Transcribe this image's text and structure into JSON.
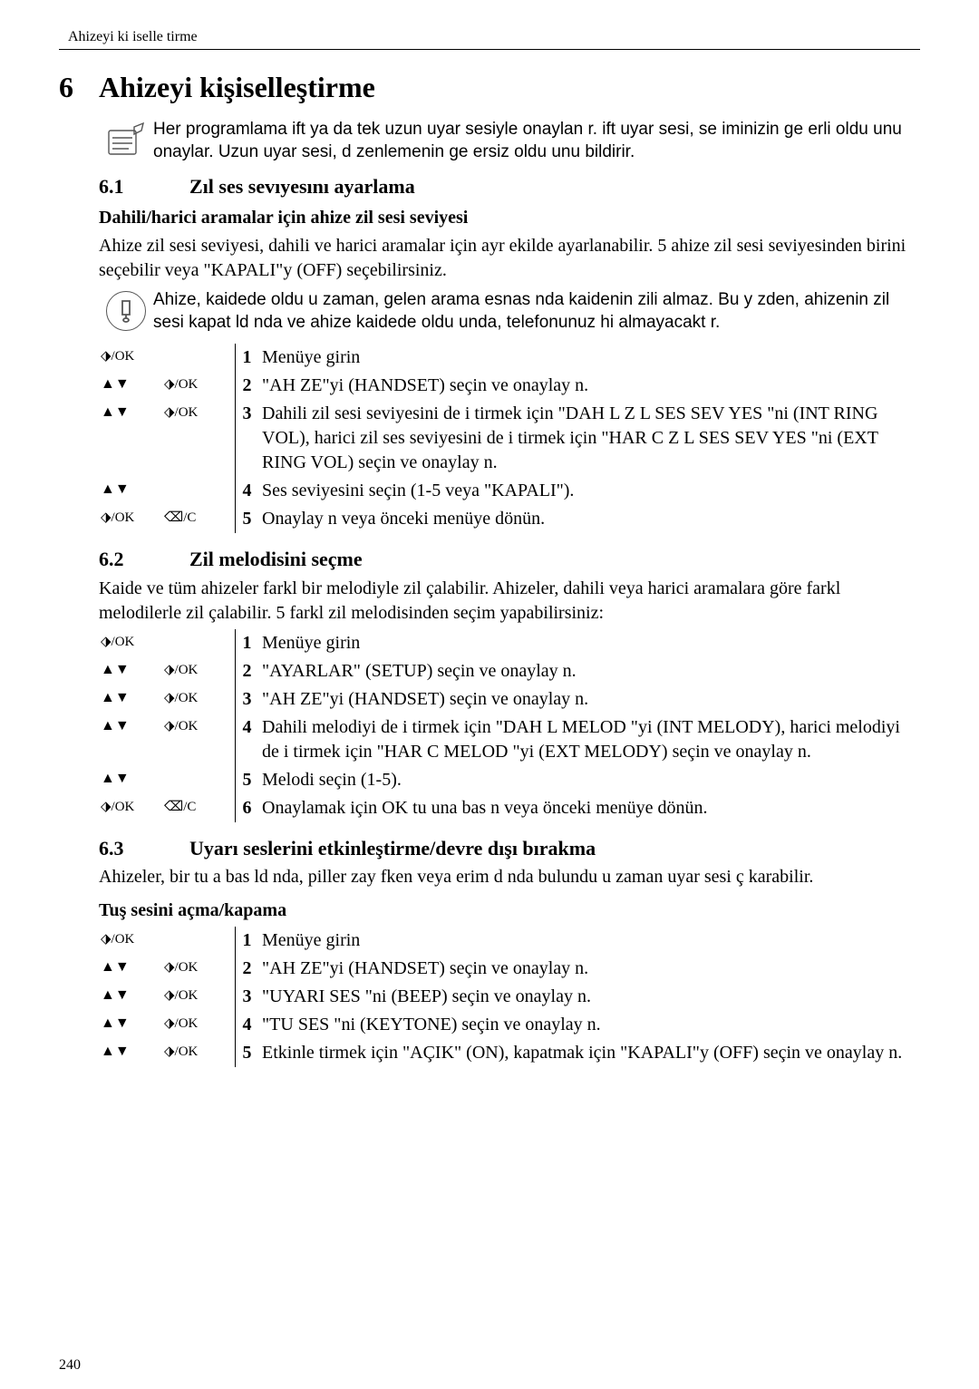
{
  "header": "Ahizeyi ki iselle tirme",
  "page_num": "240",
  "h1_num": "6",
  "h1_title": "Ahizeyi kişiselleştirme",
  "note1": "Her programlama  ift ya da tek uzun uyar  sesiyle onaylan r.  ift uyar  sesi, se iminizin ge erli oldu unu onaylar. Uzun uyar  sesi, d zenlemenin ge ersiz oldu unu bildirir.",
  "s61_num": "6.1",
  "s61_title": "Zıl ses sevıyesını ayarlama",
  "s61_h3": "Dahili/harici aramalar için ahize zil sesi seviyesi",
  "s61_p": "Ahize zil sesi seviyesi, dahili ve harici aramalar için ayr   ekilde ayarlanabilir. 5 ahize zil sesi seviyesinden birini seçebilir veya \"KAPALI\"y  (OFF) seçebilirsiniz.",
  "note2": "Ahize, kaidede oldu u zaman, gelen arama esnas nda kaidenin zili  almaz. Bu y zden, ahizenin zil sesi kapat ld   nda ve ahize kaidede oldu unda, telefonunuz hi   almayacakt r.",
  "s61_steps": [
    {
      "icons1": "ok",
      "icons2": "",
      "n": "1",
      "t": "Menüye girin"
    },
    {
      "icons1": "ud",
      "icons2": "ok",
      "n": "2",
      "t": "\"AH ZE\"yi (HANDSET) seçin ve onaylay n."
    },
    {
      "icons1": "ud",
      "icons2": "ok",
      "n": "3",
      "t": "Dahili zil sesi seviyesini de i tirmek için \"DAH L  Z L SES  SEV YES \"ni (INT RING VOL), harici zil ses seviyesini de i tirmek için \"HAR C  Z L SES  SEV YES \"ni (EXT RING VOL) seçin ve onaylay n."
    },
    {
      "icons1": "ud",
      "icons2": "",
      "n": "4",
      "t": "Ses seviyesini seçin (1-5 veya \"KAPALI\")."
    },
    {
      "icons1": "ok",
      "icons2": "delc",
      "n": "5",
      "t": "Onaylay n veya önceki menüye dönün."
    }
  ],
  "s62_num": "6.2",
  "s62_title": "Zil melodisini seçme",
  "s62_p": "Kaide ve tüm ahizeler farkl  bir melodiyle zil çalabilir. Ahizeler, dahili veya harici aramalara göre farkl  melodilerle zil çalabilir. 5 farkl  zil melodisinden seçim yapabilirsiniz:",
  "s62_steps": [
    {
      "icons1": "ok",
      "icons2": "",
      "n": "1",
      "t": "Menüye girin"
    },
    {
      "icons1": "ud",
      "icons2": "ok",
      "n": "2",
      "t": "\"AYARLAR\"  (SETUP) seçin ve onaylay n."
    },
    {
      "icons1": "ud",
      "icons2": "ok",
      "n": "3",
      "t": "\"AH ZE\"yi (HANDSET) seçin ve onaylay n."
    },
    {
      "icons1": "ud",
      "icons2": "ok",
      "n": "4",
      "t": "Dahili melodiyi de i tirmek için \"DAH L  MELOD \"yi (INT MELODY), harici melodiyi de i tirmek için \"HAR C  MELOD \"yi (EXT MELODY) seçin ve onaylay n."
    },
    {
      "icons1": "ud",
      "icons2": "",
      "n": "5",
      "t": "Melodi seçin (1-5)."
    },
    {
      "icons1": "ok",
      "icons2": "delc",
      "n": "6",
      "t": "Onaylamak için OK tu una bas n veya önceki menüye dönün."
    }
  ],
  "s63_num": "6.3",
  "s63_title": "Uyarı seslerini etkinleştirme/devre dışı bırakma",
  "s63_p": "Ahizeler, bir tu a bas ld   nda, piller zay fken veya erim d   nda bulundu u zaman uyar  sesi ç karabilir.",
  "s63_h3": "Tuş sesini açma/kapama",
  "s63_steps": [
    {
      "icons1": "ok",
      "icons2": "",
      "n": "1",
      "t": "Menüye girin"
    },
    {
      "icons1": "ud",
      "icons2": "ok",
      "n": "2",
      "t": "\"AH ZE\"yi (HANDSET) seçin ve onaylay n."
    },
    {
      "icons1": "ud",
      "icons2": "ok",
      "n": "3",
      "t": "\"UYARI SES \"ni (BEEP) seçin ve onaylay n."
    },
    {
      "icons1": "ud",
      "icons2": "ok",
      "n": "4",
      "t": "\"TU   SES \"ni (KEYTONE) seçin ve onaylay n."
    },
    {
      "icons1": "ud",
      "icons2": "ok",
      "n": "5",
      "t": "Etkinle tirmek için \"AÇIK\"  (ON), kapatmak için \"KAPALI\"y  (OFF) seçin ve onaylay n."
    }
  ],
  "icons": {
    "ok": "⬗/OK",
    "ud": "▲▼",
    "delc": "⌫/C"
  }
}
